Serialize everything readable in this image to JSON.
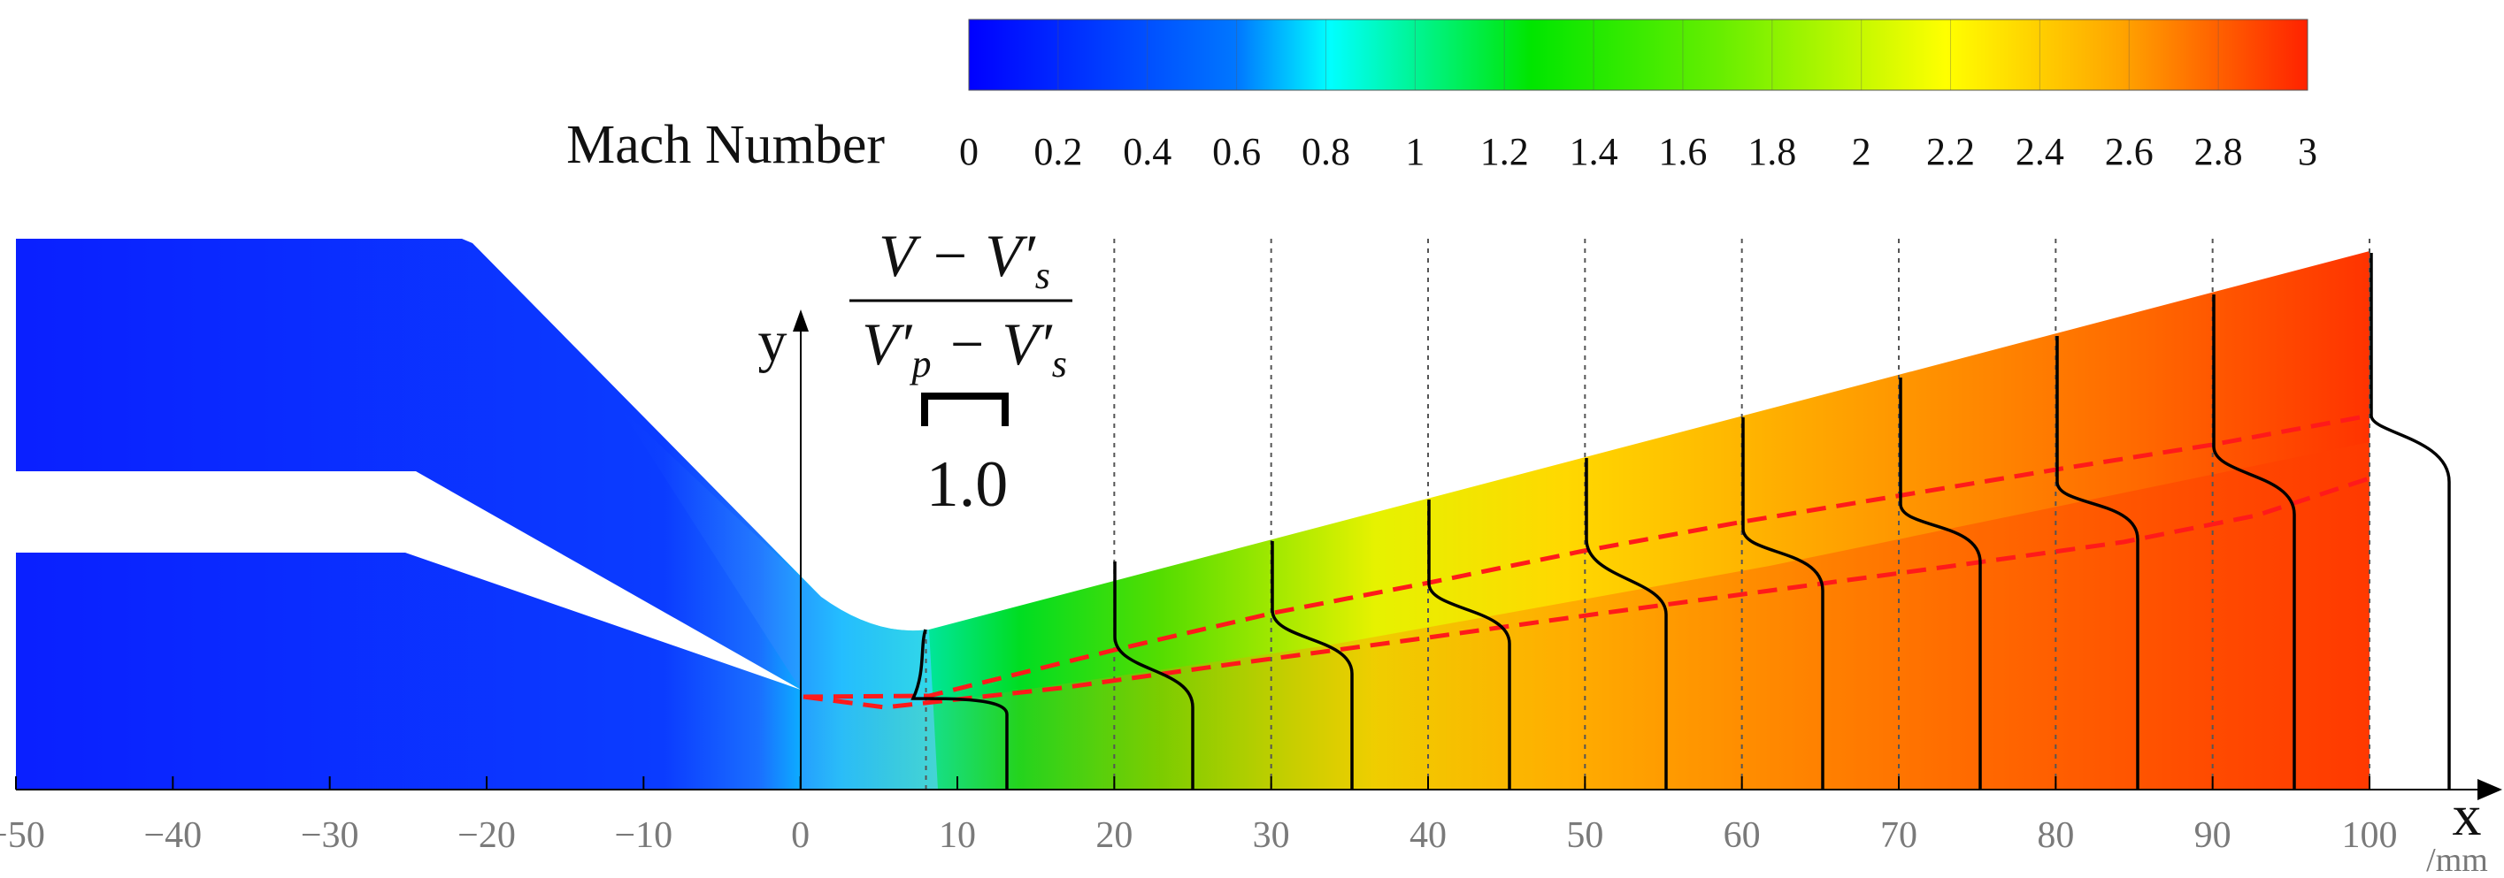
{
  "colorbar": {
    "title": "Mach Number",
    "ticks": [
      "0",
      "0.2",
      "0.4",
      "0.6",
      "0.8",
      "1",
      "1.2",
      "1.4",
      "1.6",
      "1.8",
      "2",
      "2.2",
      "2.4",
      "2.6",
      "2.8",
      "3"
    ],
    "range": [
      0,
      3
    ],
    "stops": [
      "#0000ff",
      "#0066ff",
      "#00ffff",
      "#00e600",
      "#ffff00",
      "#ff9900",
      "#ff2200"
    ]
  },
  "x_axis": {
    "label": "x",
    "unit": "/mm",
    "range_mm": [
      -50,
      100
    ],
    "ticks": [
      "−50",
      "−40",
      "−30",
      "−20",
      "−10",
      "0",
      "10",
      "20",
      "30",
      "40",
      "50",
      "60",
      "70",
      "80",
      "90",
      "100"
    ]
  },
  "y_axis": {
    "label": "y"
  },
  "profile_scale": {
    "fraction": "V − V′s / V′p − V′s",
    "bar_label": "1.0"
  },
  "profile_stations_mm": [
    8,
    20,
    30,
    40,
    50,
    60,
    70,
    80,
    90,
    100
  ],
  "shear_layer": {
    "color": "#ff1a1a",
    "style": "dashed"
  }
}
